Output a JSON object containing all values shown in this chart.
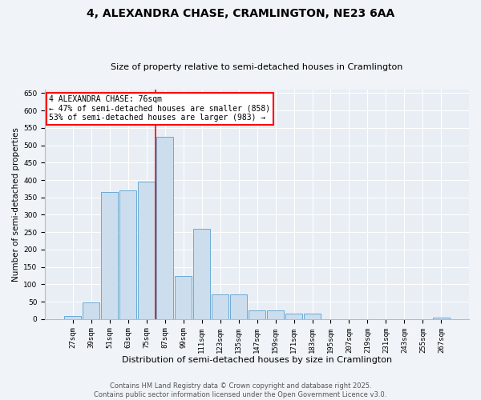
{
  "title": "4, ALEXANDRA CHASE, CRAMLINGTON, NE23 6AA",
  "subtitle": "Size of property relative to semi-detached houses in Cramlington",
  "xlabel": "Distribution of semi-detached houses by size in Cramlington",
  "ylabel": "Number of semi-detached properties",
  "footer_line1": "Contains HM Land Registry data © Crown copyright and database right 2025.",
  "footer_line2": "Contains public sector information licensed under the Open Government Licence v3.0.",
  "annotation_title": "4 ALEXANDRA CHASE: 76sqm",
  "annotation_line1": "← 47% of semi-detached houses are smaller (858)",
  "annotation_line2": "53% of semi-detached houses are larger (983) →",
  "property_size": 76,
  "bar_color": "#ccdded",
  "bar_edge_color": "#6aaad4",
  "vline_color": "red",
  "background_color": "#f0f4f8",
  "plot_bg_color": "#e8eef4",
  "annotation_box_color": "white",
  "annotation_box_edge": "red",
  "categories": [
    "27sqm",
    "39sqm",
    "51sqm",
    "63sqm",
    "75sqm",
    "87sqm",
    "99sqm",
    "111sqm",
    "123sqm",
    "135sqm",
    "147sqm",
    "159sqm",
    "171sqm",
    "183sqm",
    "195sqm",
    "207sqm",
    "219sqm",
    "231sqm",
    "243sqm",
    "255sqm",
    "267sqm"
  ],
  "values": [
    10,
    47,
    365,
    370,
    395,
    525,
    125,
    260,
    70,
    70,
    25,
    25,
    15,
    15,
    0,
    0,
    0,
    0,
    0,
    0,
    5
  ],
  "ylim": [
    0,
    660
  ],
  "yticks": [
    0,
    50,
    100,
    150,
    200,
    250,
    300,
    350,
    400,
    450,
    500,
    550,
    600,
    650
  ],
  "title_fontsize": 10,
  "subtitle_fontsize": 8,
  "xlabel_fontsize": 8,
  "ylabel_fontsize": 7.5,
  "tick_fontsize": 6.5,
  "footer_fontsize": 6,
  "annotation_fontsize": 7,
  "vline_x_index": 4.5
}
